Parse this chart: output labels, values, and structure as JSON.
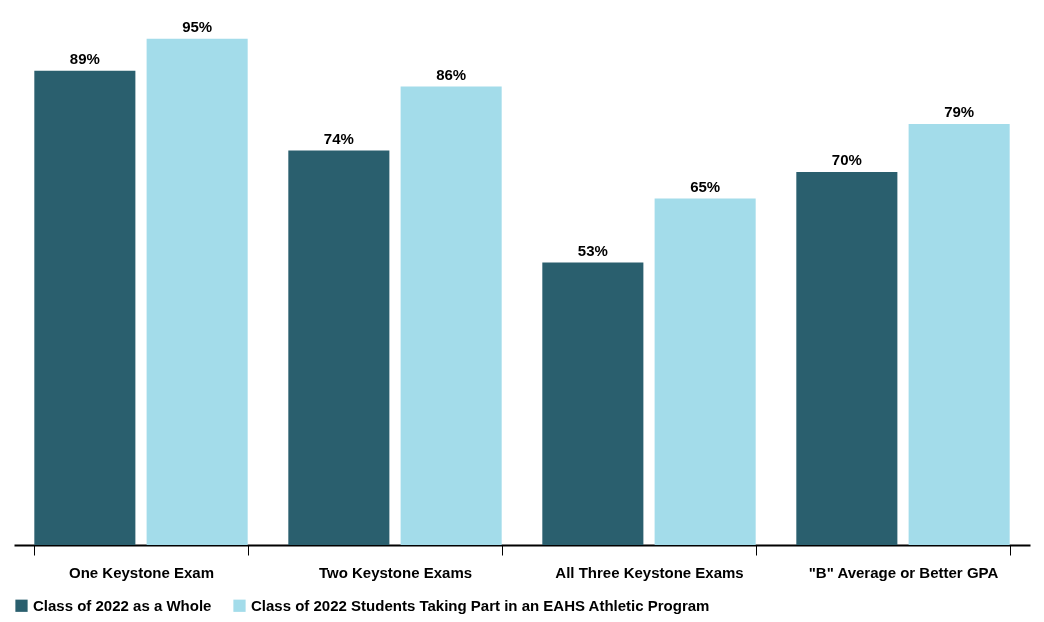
{
  "chart_data": {
    "type": "bar",
    "categories": [
      "One Keystone Exam",
      "Two Keystone Exams",
      "All Three Keystone Exams",
      "\"B\" Average or Better GPA"
    ],
    "series": [
      {
        "name": "Class of 2022 as a Whole",
        "color": "#2a5f6e",
        "values": [
          89,
          74,
          53,
          70
        ],
        "value_labels": [
          "89%",
          "74%",
          "53%",
          "70%"
        ]
      },
      {
        "name": "Class of 2022 Students Taking Part in an EAHS Athletic Program",
        "color": "#a3dcea",
        "values": [
          95,
          86,
          65,
          79
        ],
        "value_labels": [
          "95%",
          "86%",
          "65%",
          "79%"
        ]
      }
    ],
    "legend": "bottom",
    "grid": false
  }
}
